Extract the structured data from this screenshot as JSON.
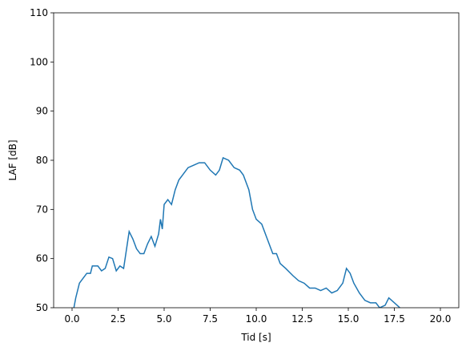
{
  "chart_data": {
    "type": "line",
    "x_label": "Tid [s]",
    "y_label": "LAF [dB]",
    "x": [
      0.1,
      0.2,
      0.4,
      0.6,
      0.8,
      1.0,
      1.1,
      1.4,
      1.6,
      1.8,
      2.0,
      2.2,
      2.4,
      2.6,
      2.8,
      3.0,
      3.1,
      3.3,
      3.5,
      3.7,
      3.9,
      4.1,
      4.3,
      4.5,
      4.7,
      4.8,
      4.9,
      5.0,
      5.2,
      5.4,
      5.6,
      5.8,
      6.0,
      6.3,
      6.6,
      6.9,
      7.2,
      7.5,
      7.8,
      8.0,
      8.2,
      8.5,
      8.8,
      9.1,
      9.3,
      9.6,
      9.8,
      10.0,
      10.3,
      10.6,
      10.9,
      11.1,
      11.3,
      11.6,
      12.0,
      12.3,
      12.6,
      12.9,
      13.2,
      13.5,
      13.8,
      14.1,
      14.4,
      14.7,
      14.9,
      15.1,
      15.3,
      15.6,
      15.9,
      16.2,
      16.5,
      16.7,
      17.0,
      17.2,
      17.5,
      17.8
    ],
    "series": [
      {
        "color": "#1f77b4",
        "values": [
          50,
          52,
          55,
          56,
          57,
          57,
          58.5,
          58.5,
          57.5,
          58,
          60.3,
          60,
          57.5,
          58.5,
          58,
          63,
          65.5,
          64,
          62,
          61,
          61,
          63,
          64.5,
          62.5,
          65,
          68,
          66,
          71,
          72,
          71,
          74,
          76,
          77,
          78.5,
          79,
          79.5,
          79.5,
          78,
          77,
          78,
          80.5,
          80,
          78.5,
          78,
          77,
          74,
          70,
          68,
          67,
          64,
          61,
          61,
          59,
          58,
          56.5,
          55.5,
          55,
          54,
          54,
          53.5,
          54,
          53,
          53.5,
          55,
          58,
          57,
          55,
          53,
          51.5,
          51,
          51,
          50,
          50.5,
          52,
          51,
          50
        ]
      }
    ],
    "xlim": [
      -1,
      21
    ],
    "xticks": [
      {
        "value": 0,
        "label": "0.0"
      },
      {
        "value": 2.5,
        "label": "2.5"
      },
      {
        "value": 5,
        "label": "5.0"
      },
      {
        "value": 7.5,
        "label": "7.5"
      },
      {
        "value": 10,
        "label": "10.0"
      },
      {
        "value": 12.5,
        "label": "12.5"
      },
      {
        "value": 15,
        "label": "15.0"
      },
      {
        "value": 17.5,
        "label": "17.5"
      },
      {
        "value": 20,
        "label": "20.0"
      }
    ],
    "ylim": [
      50,
      110
    ],
    "yticks": [
      50,
      60,
      70,
      80,
      90,
      100,
      110
    ]
  }
}
